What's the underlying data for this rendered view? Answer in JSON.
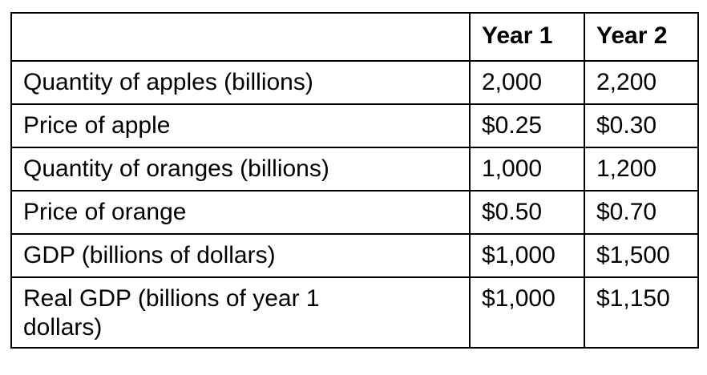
{
  "table": {
    "header": {
      "corner": "",
      "year1": "Year 1",
      "year2": "Year 2"
    },
    "rows": [
      {
        "label": "Quantity of apples (billions)",
        "year1": "2,000",
        "year2": "2,200"
      },
      {
        "label": "Price of apple",
        "year1": "$0.25",
        "year2": "$0.30"
      },
      {
        "label": "Quantity of oranges (billions)",
        "year1": "1,000",
        "year2": "1,200"
      },
      {
        "label": "Price of orange",
        "year1": "$0.50",
        "year2": "$0.70"
      },
      {
        "label": "GDP (billions of dollars)",
        "year1": "$1,000",
        "year2": "$1,500"
      },
      {
        "label": "Real GDP (billions of year 1 dollars)",
        "year1": "$1,000",
        "year2": "$1,150"
      }
    ]
  }
}
